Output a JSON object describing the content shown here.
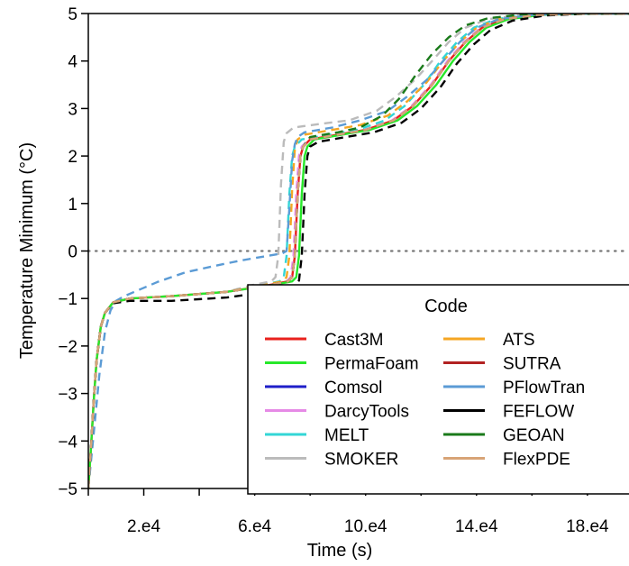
{
  "chart_data": {
    "type": "line",
    "xlabel": "Time (s)",
    "ylabel": "Temperature Minimum (°C)",
    "xlim": [
      0,
      195000
    ],
    "ylim": [
      -5,
      5
    ],
    "x_ticks": [
      {
        "value": 20000,
        "label": "2.e4"
      },
      {
        "value": 60000,
        "label": "6.e4"
      },
      {
        "value": 100000,
        "label": "10.e4"
      },
      {
        "value": 140000,
        "label": "14.e4"
      },
      {
        "value": 180000,
        "label": "18.e4"
      }
    ],
    "x_minor_ticks": [
      0,
      40000,
      80000,
      120000,
      160000
    ],
    "y_ticks": [
      {
        "value": 5,
        "label": "5"
      },
      {
        "value": 4,
        "label": "4"
      },
      {
        "value": 3,
        "label": "3"
      },
      {
        "value": 2,
        "label": "2"
      },
      {
        "value": 1,
        "label": "1"
      },
      {
        "value": 0,
        "label": "0"
      },
      {
        "value": -1,
        "label": "−1"
      },
      {
        "value": -2,
        "label": "−2"
      },
      {
        "value": -3,
        "label": "−3"
      },
      {
        "value": -4,
        "label": "−4"
      },
      {
        "value": -5,
        "label": "−5"
      }
    ],
    "reference_line": {
      "y": 0,
      "style": "dotted",
      "color": "#777777"
    },
    "legend": {
      "title": "Code",
      "position": "bottom-right",
      "columns": 2
    },
    "series": [
      {
        "name": "Cast3M",
        "color": "#e8211d",
        "dash": "solid",
        "x": [
          0,
          1000,
          2000,
          3000,
          4500,
          6000,
          9000,
          15000,
          30000,
          50000,
          65000,
          72000,
          73500,
          74500,
          75500,
          76500,
          77500,
          80000,
          90000,
          100000,
          110000,
          117000,
          124000,
          130000,
          136000,
          142000,
          150000,
          162000,
          180000,
          195000
        ],
        "y": [
          -5,
          -4.1,
          -3.1,
          -2.3,
          -1.6,
          -1.3,
          -1.08,
          -1.0,
          -0.95,
          -0.86,
          -0.72,
          -0.64,
          -0.55,
          -0.1,
          1.2,
          2.0,
          2.2,
          2.35,
          2.45,
          2.55,
          2.75,
          3.05,
          3.5,
          4.0,
          4.4,
          4.7,
          4.88,
          4.97,
          5.0,
          5.0
        ]
      },
      {
        "name": "PermaFoam",
        "color": "#27e82a",
        "dash": "solid",
        "x": [
          0,
          1000,
          2000,
          3000,
          4500,
          6000,
          9000,
          15000,
          30000,
          50000,
          66000,
          73500,
          75000,
          76000,
          77000,
          78000,
          79000,
          81500,
          91500,
          101500,
          111500,
          118500,
          125500,
          131500,
          137500,
          143500,
          151500,
          163500,
          181500,
          195000
        ],
        "y": [
          -5,
          -4.1,
          -3.1,
          -2.3,
          -1.6,
          -1.3,
          -1.08,
          -1.0,
          -0.95,
          -0.86,
          -0.72,
          -0.64,
          -0.55,
          -0.1,
          1.2,
          2.0,
          2.2,
          2.35,
          2.45,
          2.55,
          2.75,
          3.05,
          3.5,
          4.0,
          4.4,
          4.7,
          4.88,
          4.97,
          5.0,
          5.0
        ]
      },
      {
        "name": "Comsol",
        "color": "#1f1fc9",
        "dash": "dashed",
        "x": [
          0,
          1000,
          2000,
          3000,
          4500,
          6000,
          9000,
          15000,
          30000,
          50000,
          65000,
          72000,
          73500,
          74500,
          75500,
          76500,
          77500,
          80000,
          90000,
          100000,
          110000,
          117000,
          124000,
          130000,
          136000,
          142000,
          150000,
          162000,
          180000,
          195000
        ],
        "y": [
          -5,
          -4.1,
          -3.1,
          -2.3,
          -1.6,
          -1.3,
          -1.08,
          -1.0,
          -0.95,
          -0.86,
          -0.72,
          -0.64,
          -0.55,
          -0.1,
          1.2,
          2.0,
          2.2,
          2.35,
          2.45,
          2.55,
          2.75,
          3.05,
          3.5,
          4.0,
          4.4,
          4.7,
          4.88,
          4.97,
          5.0,
          5.0
        ]
      },
      {
        "name": "DarcyTools",
        "color": "#e68ae6",
        "dash": "dashed",
        "x": [
          0,
          1000,
          2000,
          3000,
          4500,
          6000,
          9000,
          15000,
          30000,
          50000,
          64500,
          71500,
          73000,
          74000,
          75000,
          76000,
          77000,
          79500,
          89500,
          99500,
          109500,
          116500,
          123500,
          129500,
          135500,
          141500,
          149500,
          161500,
          179500,
          195000
        ],
        "y": [
          -5,
          -4.1,
          -3.1,
          -2.3,
          -1.6,
          -1.3,
          -1.08,
          -1.0,
          -0.95,
          -0.86,
          -0.72,
          -0.64,
          -0.55,
          -0.1,
          1.2,
          2.0,
          2.2,
          2.35,
          2.45,
          2.55,
          2.75,
          3.05,
          3.5,
          4.0,
          4.4,
          4.7,
          4.88,
          4.97,
          5.0,
          5.0
        ]
      },
      {
        "name": "MELT",
        "color": "#33d6d6",
        "dash": "dashed",
        "x": [
          0,
          1000,
          2000,
          3000,
          4500,
          6000,
          9000,
          15000,
          30000,
          50000,
          62000,
          69000,
          70500,
          71500,
          72500,
          73500,
          74500,
          77000,
          87000,
          97000,
          107000,
          114000,
          121000,
          127000,
          133000,
          139000,
          147000,
          159000,
          177000,
          195000
        ],
        "y": [
          -5,
          -4.1,
          -3.1,
          -2.3,
          -1.6,
          -1.3,
          -1.08,
          -1.0,
          -0.95,
          -0.86,
          -0.72,
          -0.64,
          -0.55,
          -0.1,
          1.2,
          2.0,
          2.2,
          2.35,
          2.45,
          2.55,
          2.75,
          3.05,
          3.5,
          4.0,
          4.4,
          4.7,
          4.88,
          4.97,
          5.0,
          5.0
        ]
      },
      {
        "name": "SMOKER",
        "color": "#bbbbbb",
        "dash": "dashed",
        "x": [
          0,
          1000,
          2000,
          3000,
          4500,
          6000,
          9000,
          15000,
          30000,
          50000,
          59000,
          66000,
          67500,
          68500,
          69500,
          70500,
          71500,
          74000,
          84000,
          94000,
          104000,
          111000,
          118000,
          124000,
          130000,
          136000,
          144000,
          156000,
          174000,
          195000
        ],
        "y": [
          -5,
          -4.1,
          -3.1,
          -2.3,
          -1.6,
          -1.3,
          -1.08,
          -1.0,
          -0.95,
          -0.86,
          -0.72,
          -0.64,
          -0.55,
          -0.1,
          1.4,
          2.3,
          2.48,
          2.6,
          2.68,
          2.75,
          2.95,
          3.25,
          3.62,
          4.0,
          4.4,
          4.7,
          4.88,
          4.97,
          5.0,
          5.0
        ]
      },
      {
        "name": "ATS",
        "color": "#f5a623",
        "dash": "dashed",
        "x": [
          0,
          1000,
          2000,
          3000,
          4500,
          6000,
          9000,
          15000,
          30000,
          50000,
          63000,
          70000,
          71500,
          72500,
          73500,
          74500,
          75500,
          78000,
          88000,
          98000,
          108000,
          115000,
          122000,
          128000,
          134000,
          140000,
          148000,
          160000,
          178000,
          195000
        ],
        "y": [
          -5,
          -4.1,
          -3.1,
          -2.3,
          -1.6,
          -1.3,
          -1.08,
          -1.0,
          -0.95,
          -0.86,
          -0.72,
          -0.64,
          -0.55,
          -0.1,
          1.3,
          2.15,
          2.35,
          2.45,
          2.55,
          2.65,
          2.85,
          3.15,
          3.55,
          4.0,
          4.4,
          4.7,
          4.88,
          4.97,
          5.0,
          5.0
        ]
      },
      {
        "name": "SUTRA",
        "color": "#b22222",
        "dash": "dashed",
        "x": [
          0,
          1000,
          2000,
          3000,
          4500,
          6000,
          9000,
          15000,
          30000,
          50000,
          65000,
          72000,
          73500,
          74500,
          75500,
          76500,
          77500,
          80000,
          90000,
          100000,
          110000,
          117000,
          124000,
          130000,
          136000,
          142000,
          150000,
          162000,
          180000,
          195000
        ],
        "y": [
          -5,
          -4.1,
          -3.1,
          -2.3,
          -1.6,
          -1.3,
          -1.08,
          -1.0,
          -0.95,
          -0.86,
          -0.72,
          -0.64,
          -0.55,
          -0.1,
          1.2,
          2.0,
          2.2,
          2.35,
          2.45,
          2.55,
          2.75,
          3.05,
          3.5,
          4.0,
          4.4,
          4.7,
          4.88,
          4.97,
          5.0,
          5.0
        ]
      },
      {
        "name": "PFlowTran",
        "color": "#5b9bd5",
        "dash": "dashed",
        "x": [
          0,
          2000,
          4000,
          6000,
          8000,
          10000,
          13000,
          17000,
          25000,
          35000,
          45000,
          55000,
          63000,
          70000,
          71500,
          72500,
          73500,
          74500,
          75500,
          78000,
          88000,
          98000,
          108000,
          115000,
          122000,
          128000,
          134000,
          140000,
          148000,
          160000,
          178000,
          195000
        ],
        "y": [
          -5,
          -3.8,
          -2.6,
          -1.7,
          -1.25,
          -1.05,
          -0.95,
          -0.85,
          -0.65,
          -0.45,
          -0.32,
          -0.2,
          -0.12,
          -0.05,
          0.0,
          0.9,
          1.9,
          2.25,
          2.4,
          2.5,
          2.6,
          2.75,
          2.95,
          3.25,
          3.6,
          4.0,
          4.4,
          4.7,
          4.88,
          4.97,
          5.0,
          5.0
        ]
      },
      {
        "name": "FEFLOW",
        "color": "#000000",
        "dash": "dashed",
        "x": [
          0,
          1000,
          2000,
          3000,
          4500,
          6000,
          9000,
          15000,
          30000,
          50000,
          66000,
          74500,
          76000,
          77000,
          78000,
          79000,
          80000,
          83000,
          93000,
          103000,
          113000,
          120000,
          127000,
          133000,
          139000,
          145000,
          153000,
          165000,
          182000,
          195000
        ],
        "y": [
          -5,
          -4.1,
          -3.1,
          -2.3,
          -1.6,
          -1.3,
          -1.1,
          -1.05,
          -1.05,
          -0.98,
          -0.85,
          -0.75,
          -0.62,
          -0.1,
          1.2,
          2.0,
          2.2,
          2.3,
          2.4,
          2.5,
          2.7,
          3.0,
          3.45,
          3.95,
          4.35,
          4.65,
          4.85,
          4.96,
          5.0,
          5.0
        ]
      },
      {
        "name": "GEOAN",
        "color": "#1a7a1a",
        "dash": "dashed",
        "x": [
          0,
          1000,
          2000,
          3000,
          4500,
          6000,
          9000,
          15000,
          30000,
          50000,
          65000,
          72000,
          73500,
          74500,
          75500,
          76500,
          77500,
          80000,
          90000,
          98000,
          106000,
          112000,
          118000,
          124000,
          130000,
          136000,
          144000,
          156000,
          176000,
          195000
        ],
        "y": [
          -5,
          -4.1,
          -3.1,
          -2.3,
          -1.6,
          -1.3,
          -1.08,
          -1.0,
          -0.95,
          -0.86,
          -0.72,
          -0.64,
          -0.55,
          -0.1,
          1.2,
          2.0,
          2.2,
          2.4,
          2.5,
          2.6,
          2.85,
          3.2,
          3.7,
          4.15,
          4.5,
          4.75,
          4.9,
          4.98,
          5.0,
          5.0
        ]
      },
      {
        "name": "FlexPDE",
        "color": "#d8a477",
        "dash": "dashed",
        "x": [
          0,
          1000,
          2000,
          3000,
          4500,
          6000,
          9000,
          15000,
          30000,
          50000,
          65000,
          72000,
          73500,
          74500,
          75500,
          76500,
          77500,
          80000,
          90000,
          100000,
          110000,
          117000,
          124000,
          130000,
          136000,
          142000,
          150000,
          162000,
          180000,
          195000
        ],
        "y": [
          -5,
          -4.1,
          -3.1,
          -2.3,
          -1.6,
          -1.3,
          -1.08,
          -1.0,
          -0.95,
          -0.86,
          -0.72,
          -0.64,
          -0.55,
          -0.1,
          1.2,
          2.0,
          2.2,
          2.35,
          2.45,
          2.55,
          2.75,
          3.05,
          3.5,
          4.0,
          4.4,
          4.7,
          4.88,
          4.97,
          5.0,
          5.0
        ]
      }
    ]
  }
}
